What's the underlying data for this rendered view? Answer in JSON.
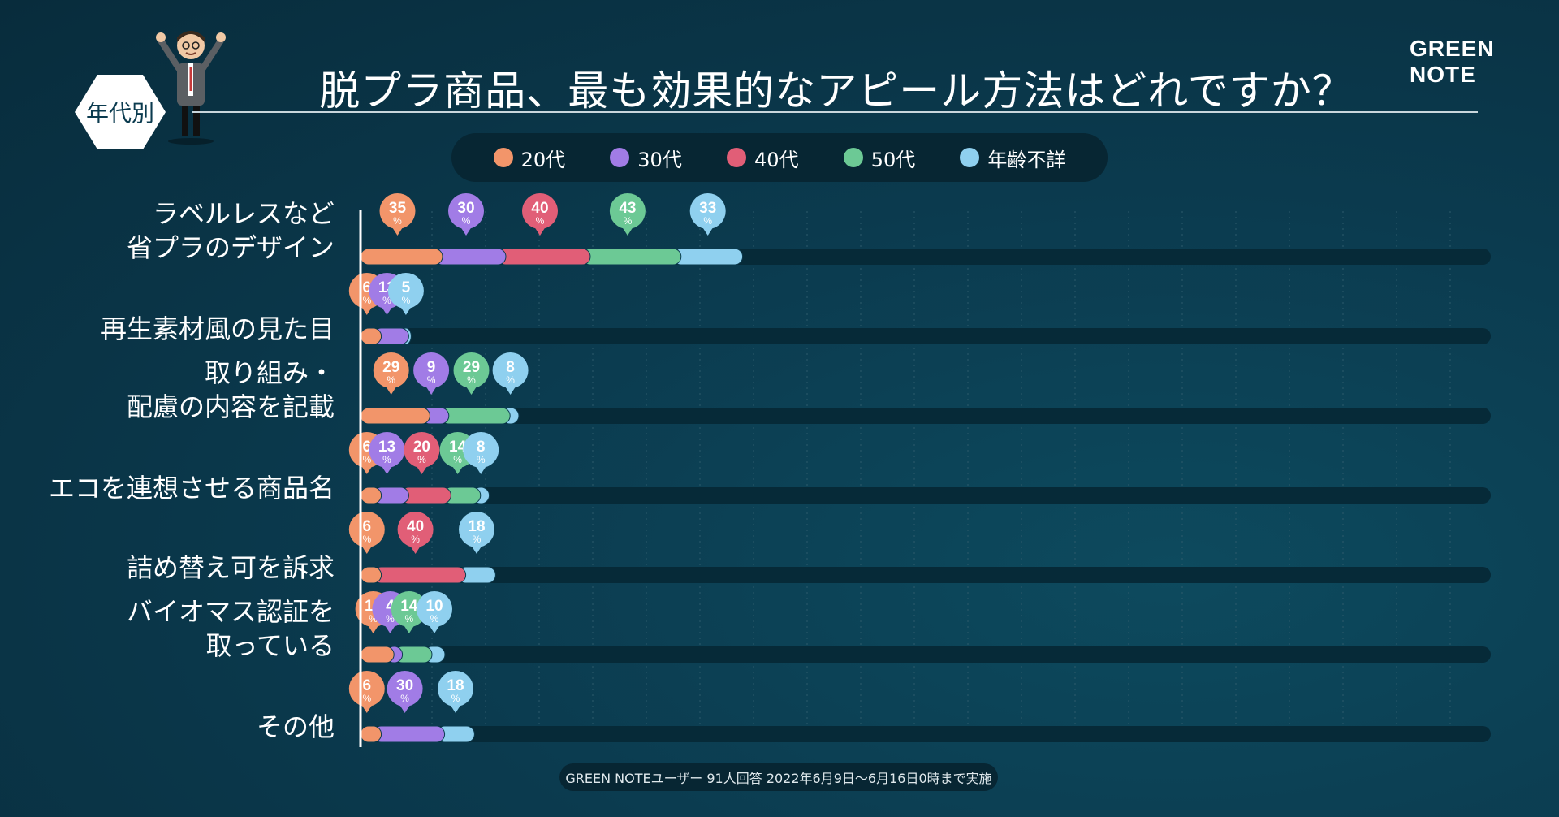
{
  "header": {
    "title": "脱プラ商品、最も効果的なアピール方法はどれですか？",
    "badge": "年代別",
    "logo": "GREEN NOTE"
  },
  "footer": {
    "note": "GREEN NOTEユーザー 91人回答 2022年6月9日〜6月16日0時まで実施"
  },
  "colors": {
    "20代": "#f2956a",
    "30代": "#a17ce6",
    "40代": "#e15e77",
    "50代": "#6cc995",
    "年齢不詳": "#8fd0ef",
    "track": "#062a38"
  },
  "chart_data": {
    "type": "bar",
    "stacked": true,
    "orientation": "horizontal",
    "title": "脱プラ商品、最も効果的なアピール方法はどれですか？",
    "unit": "%",
    "legend_position": "top",
    "categories": [
      "ラベルレスなど\n省プラのデザイン",
      "再生素材風の見た目",
      "取り組み・\n配慮の内容を記載",
      "エコを連想させる商品名",
      "詰め替え可を訴求",
      "バイオマス認証を\n取っている",
      "その他"
    ],
    "series": [
      {
        "name": "20代",
        "values": [
          35,
          6,
          29,
          6,
          6,
          12,
          6
        ]
      },
      {
        "name": "30代",
        "values": [
          30,
          13,
          9,
          13,
          0,
          4,
          30
        ]
      },
      {
        "name": "40代",
        "values": [
          40,
          0,
          0,
          20,
          40,
          0,
          0
        ]
      },
      {
        "name": "50代",
        "values": [
          43,
          0,
          29,
          14,
          0,
          14,
          0
        ]
      },
      {
        "name": "年齢不詳",
        "values": [
          33,
          5,
          8,
          8,
          18,
          10,
          18
        ]
      }
    ]
  }
}
